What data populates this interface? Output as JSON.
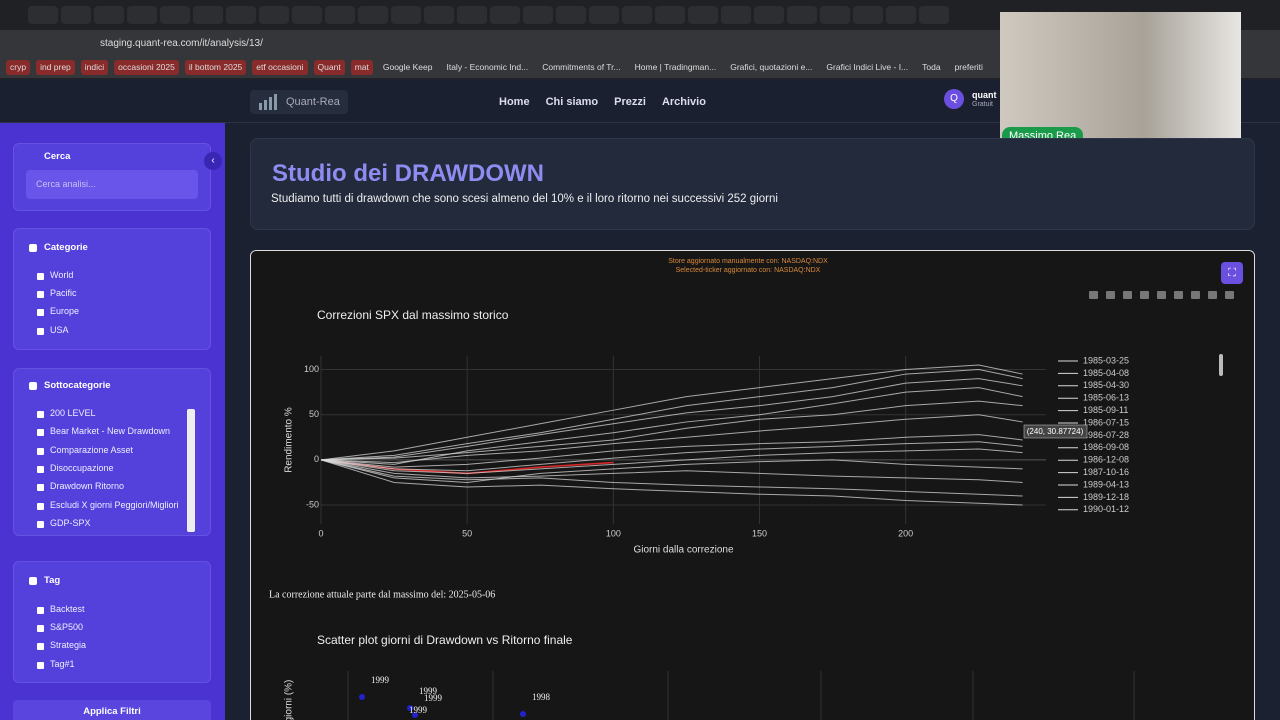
{
  "browser": {
    "url": "staging.quant-rea.com/it/analysis/13/",
    "bookmarks": [
      "cryp",
      "ind prep",
      "indici",
      "occasioni 2025",
      "il bottom 2025",
      "etf occasioni",
      "Quant",
      "mat",
      "Google Keep",
      "Italy - Economic Ind...",
      "Commitments of Tr...",
      "Home | Tradingman...",
      "Grafici, quotazioni e...",
      "Grafici Indici Live - I...",
      "Toda",
      "preferiti"
    ]
  },
  "header": {
    "brand": "Quant-Rea",
    "nav": [
      "Home",
      "Chi siamo",
      "Prezzi",
      "Archivio"
    ],
    "user": {
      "initial": "Q",
      "name": "quant",
      "plan": "Gratuit"
    }
  },
  "webcam": {
    "name": "Massimo Rea"
  },
  "sidebar": {
    "search": {
      "title": "Cerca",
      "placeholder": "Cerca analisi..."
    },
    "categories": {
      "title": "Categorie",
      "items": [
        "World",
        "Pacific",
        "Europe",
        "USA"
      ]
    },
    "subcategories": {
      "title": "Sottocategorie",
      "items": [
        "200 LEVEL",
        "Bear Market - New Drawdown",
        "Comparazione Asset",
        "Disoccupazione",
        "Drawdown Ritorno",
        "Escludi X giorni Peggiori/Migliori",
        "GDP-SPX"
      ]
    },
    "tags": {
      "title": "Tag",
      "items": [
        "Backtest",
        "S&P500",
        "Strategia",
        "Tag#1"
      ]
    },
    "apply": "Applica Filtri"
  },
  "main": {
    "title": "Studio dei DRAWDOWN",
    "subtitle": "Studiamo tutti di drawdown che sono scesi almeno del 10% e il loro ritorno nei successivi 252 giorni",
    "notices": [
      "Store aggiornato manualmente con: NASDAQ:NDX",
      "Selected-ticker aggiornato con: NASDAQ:NDX"
    ],
    "note": "La correzione attuale parte dal massimo del: 2025-05-06"
  },
  "chart_data": [
    {
      "type": "line",
      "title": "Correzioni SPX dal massimo storico",
      "x_label": "Giorni dalla correzione",
      "y_label": "Rendimento %",
      "tooltip": "(240, 30.87724)",
      "x": [
        0,
        25,
        50,
        75,
        100,
        125,
        150,
        175,
        200,
        225,
        240
      ],
      "xlim": [
        0,
        248
      ],
      "ylim": [
        -71,
        115
      ],
      "xticks": [
        0,
        50,
        100,
        150,
        200
      ],
      "yticks": [
        -50,
        0,
        50,
        100
      ],
      "grid": true,
      "series": [
        {
          "color": "#d62728",
          "values": [
            0,
            -10,
            -15,
            -8,
            -3,
            null,
            null,
            null,
            null,
            null,
            null
          ]
        },
        {
          "name": "1985-03-25",
          "color": "#d9d9d9",
          "values": [
            0,
            10,
            25,
            40,
            55,
            70,
            80,
            90,
            100,
            105,
            95
          ]
        },
        {
          "name": "1985-04-08",
          "color": "#d9d9d9",
          "values": [
            0,
            5,
            18,
            30,
            45,
            60,
            70,
            80,
            95,
            100,
            90
          ]
        },
        {
          "name": "1985-04-30",
          "color": "#d9d9d9",
          "values": [
            0,
            3,
            15,
            28,
            40,
            52,
            60,
            70,
            85,
            90,
            82
          ]
        },
        {
          "name": "1985-06-13",
          "color": "#d9d9d9",
          "values": [
            0,
            -5,
            10,
            20,
            30,
            42,
            50,
            62,
            75,
            80,
            70
          ]
        },
        {
          "name": "1985-09-11",
          "color": "#d9d9d9",
          "values": [
            0,
            2,
            8,
            15,
            22,
            35,
            45,
            50,
            60,
            65,
            60
          ]
        },
        {
          "name": "1986-07-15",
          "color": "#d9d9d9",
          "values": [
            0,
            -3,
            5,
            10,
            18,
            25,
            32,
            38,
            45,
            50,
            42
          ]
        },
        {
          "name": "1986-07-28",
          "color": "#d9d9d9",
          "values": [
            0,
            -8,
            -5,
            2,
            10,
            15,
            18,
            20,
            25,
            28,
            22
          ]
        },
        {
          "name": "1986-09-08",
          "color": "#d9d9d9",
          "values": [
            0,
            -10,
            -12,
            -5,
            2,
            8,
            12,
            15,
            18,
            20,
            15
          ]
        },
        {
          "name": "1986-12-08",
          "color": "#d9d9d9",
          "values": [
            0,
            -12,
            -15,
            -10,
            -5,
            0,
            5,
            8,
            10,
            12,
            8
          ]
        },
        {
          "name": "1987-10-16",
          "color": "#d9d9d9",
          "values": [
            0,
            -20,
            -25,
            -15,
            -10,
            -5,
            -2,
            0,
            -5,
            -8,
            -10
          ]
        },
        {
          "name": "1989-04-13",
          "color": "#d9d9d9",
          "values": [
            0,
            -15,
            -20,
            -18,
            -15,
            -12,
            -15,
            -18,
            -20,
            -22,
            -25
          ]
        },
        {
          "name": "1989-12-18",
          "color": "#d9d9d9",
          "values": [
            0,
            -18,
            -22,
            -20,
            -25,
            -28,
            -30,
            -32,
            -35,
            -38,
            -40
          ]
        },
        {
          "name": "1990-01-12",
          "color": "#d9d9d9",
          "values": [
            0,
            -25,
            -30,
            -28,
            -32,
            -35,
            -38,
            -40,
            -45,
            -48,
            -50
          ]
        }
      ]
    },
    {
      "type": "scatter",
      "title": "Scatter plot giorni di Drawdown vs Ritorno finale",
      "y_label": "giorni (%)",
      "point_labels": [
        "1999",
        "1999",
        "1999",
        "1999",
        "1998"
      ]
    }
  ]
}
